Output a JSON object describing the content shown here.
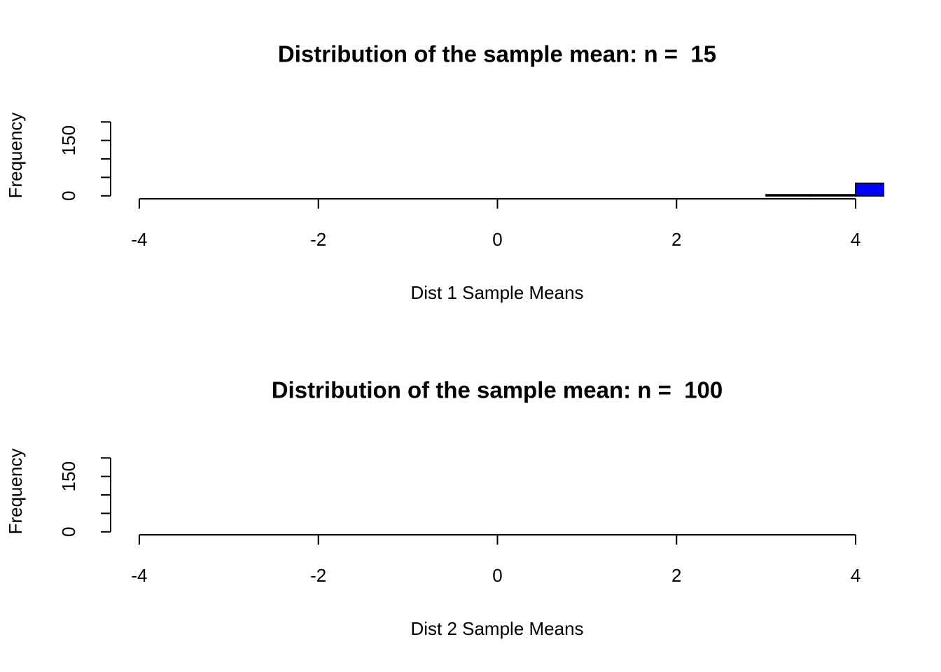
{
  "chart_data": [
    {
      "type": "histogram",
      "title": "Distribution of the sample mean: n =  15",
      "xlabel": "Dist 1 Sample Means",
      "ylabel": "Frequency",
      "bins": [
        3,
        3.5,
        4,
        4.5
      ],
      "values": [
        3,
        3,
        34
      ],
      "color": "#0000ff",
      "xlim": [
        -4,
        4
      ],
      "xticks": [
        -4,
        -2,
        0,
        2,
        4
      ],
      "ylim": [
        0,
        200
      ],
      "yticks": [
        0,
        {
          "value": 50,
          "label": null
        },
        {
          "value": 100,
          "label": null
        },
        150,
        {
          "value": 200,
          "label": null
        }
      ]
    },
    {
      "type": "histogram",
      "title": "Distribution of the sample mean: n =  100",
      "xlabel": "Dist 2 Sample Means",
      "ylabel": "Frequency",
      "color": "#0000ff",
      "xlim": [
        -4,
        4
      ],
      "xticks": [
        -4,
        -2,
        0,
        2,
        4
      ],
      "ylim": [
        0,
        200
      ],
      "yticks": [
        0,
        {
          "value": 50,
          "label": null
        },
        {
          "value": 100,
          "label": null
        },
        150,
        {
          "value": 200,
          "label": null
        }
      ]
    }
  ]
}
